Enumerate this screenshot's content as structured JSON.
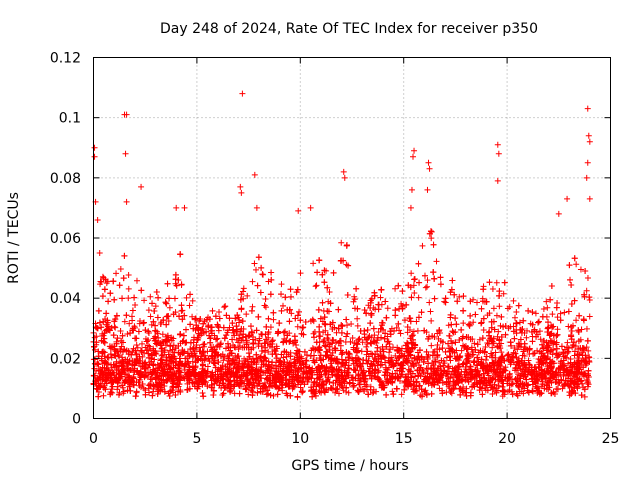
{
  "chart_data": {
    "type": "scatter",
    "title": "Day 248 of 2024, Rate Of TEC Index for receiver p350",
    "xlabel": "GPS time / hours",
    "ylabel": "ROTI / TECUs",
    "xlim": [
      0,
      25
    ],
    "ylim": [
      0,
      0.12
    ],
    "xticks": [
      0,
      5,
      10,
      15,
      20,
      25
    ],
    "yticks": [
      0,
      0.02,
      0.04,
      0.06,
      0.08,
      0.1,
      0.12
    ],
    "xtick_labels": [
      "0",
      "5",
      "10",
      "15",
      "20",
      "25"
    ],
    "ytick_labels": [
      "0",
      "0.02",
      "0.04",
      "0.06",
      "0.08",
      "0.1",
      "0.12"
    ],
    "grid": true,
    "marker": "+",
    "color": "#ff0000",
    "series": [
      {
        "name": "ROTI",
        "x_range": [
          0,
          24
        ],
        "dense_band": [
          0.005,
          0.03
        ],
        "notable_points": [
          {
            "x": 0.05,
            "y": 0.09
          },
          {
            "x": 0.05,
            "y": 0.087
          },
          {
            "x": 0.1,
            "y": 0.072
          },
          {
            "x": 0.2,
            "y": 0.066
          },
          {
            "x": 0.3,
            "y": 0.055
          },
          {
            "x": 1.5,
            "y": 0.101
          },
          {
            "x": 1.6,
            "y": 0.101
          },
          {
            "x": 1.55,
            "y": 0.088
          },
          {
            "x": 1.6,
            "y": 0.072
          },
          {
            "x": 2.3,
            "y": 0.077
          },
          {
            "x": 4.0,
            "y": 0.07
          },
          {
            "x": 4.4,
            "y": 0.07
          },
          {
            "x": 7.2,
            "y": 0.108
          },
          {
            "x": 7.1,
            "y": 0.077
          },
          {
            "x": 7.15,
            "y": 0.075
          },
          {
            "x": 7.8,
            "y": 0.081
          },
          {
            "x": 7.9,
            "y": 0.07
          },
          {
            "x": 9.9,
            "y": 0.069
          },
          {
            "x": 10.5,
            "y": 0.07
          },
          {
            "x": 12.1,
            "y": 0.082
          },
          {
            "x": 12.15,
            "y": 0.08
          },
          {
            "x": 15.5,
            "y": 0.089
          },
          {
            "x": 15.45,
            "y": 0.087
          },
          {
            "x": 15.4,
            "y": 0.076
          },
          {
            "x": 15.35,
            "y": 0.07
          },
          {
            "x": 16.2,
            "y": 0.085
          },
          {
            "x": 16.25,
            "y": 0.083
          },
          {
            "x": 16.15,
            "y": 0.076
          },
          {
            "x": 19.55,
            "y": 0.091
          },
          {
            "x": 19.6,
            "y": 0.088
          },
          {
            "x": 19.55,
            "y": 0.079
          },
          {
            "x": 22.5,
            "y": 0.068
          },
          {
            "x": 22.9,
            "y": 0.073
          },
          {
            "x": 23.9,
            "y": 0.103
          },
          {
            "x": 23.95,
            "y": 0.094
          },
          {
            "x": 24.0,
            "y": 0.092
          },
          {
            "x": 23.9,
            "y": 0.085
          },
          {
            "x": 23.85,
            "y": 0.08
          },
          {
            "x": 24.0,
            "y": 0.073
          }
        ]
      }
    ]
  }
}
